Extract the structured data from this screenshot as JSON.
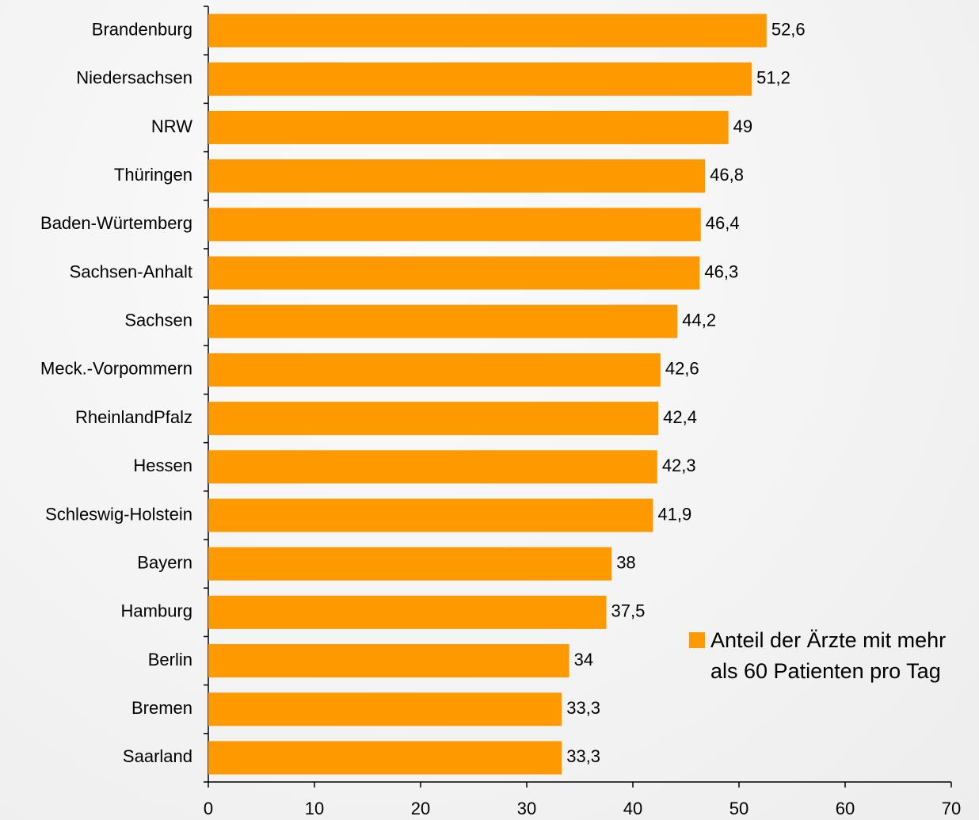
{
  "chart_data": {
    "type": "barh",
    "categories": [
      "Brandenburg",
      "Niedersachsen",
      "NRW",
      "Thüringen",
      "Baden-Würtemberg",
      "Sachsen-Anhalt",
      "Sachsen",
      "Meck.-Vorpommern",
      "RheinlandPfalz",
      "Hessen",
      "Schleswig-Holstein",
      "Bayern",
      "Hamburg",
      "Berlin",
      "Bremen",
      "Saarland"
    ],
    "series": [
      {
        "name": "Anteil der Ärzte mit mehr als 60 Patienten pro Tag",
        "color": "#ff9900",
        "values": [
          52.6,
          51.2,
          49,
          46.8,
          46.4,
          46.3,
          44.2,
          42.6,
          42.4,
          42.3,
          41.9,
          38,
          37.5,
          34,
          33.3,
          33.3
        ],
        "value_labels": [
          "52,6",
          "51,2",
          "49",
          "46,8",
          "46,4",
          "46,3",
          "44,2",
          "42,6",
          "42,4",
          "42,3",
          "41,9",
          "38",
          "37,5",
          "34",
          "33,3",
          "33,3"
        ]
      }
    ],
    "xlim": [
      0,
      70
    ],
    "xticks": [
      0,
      10,
      20,
      30,
      40,
      50,
      60,
      70
    ],
    "legend": "lower right"
  }
}
